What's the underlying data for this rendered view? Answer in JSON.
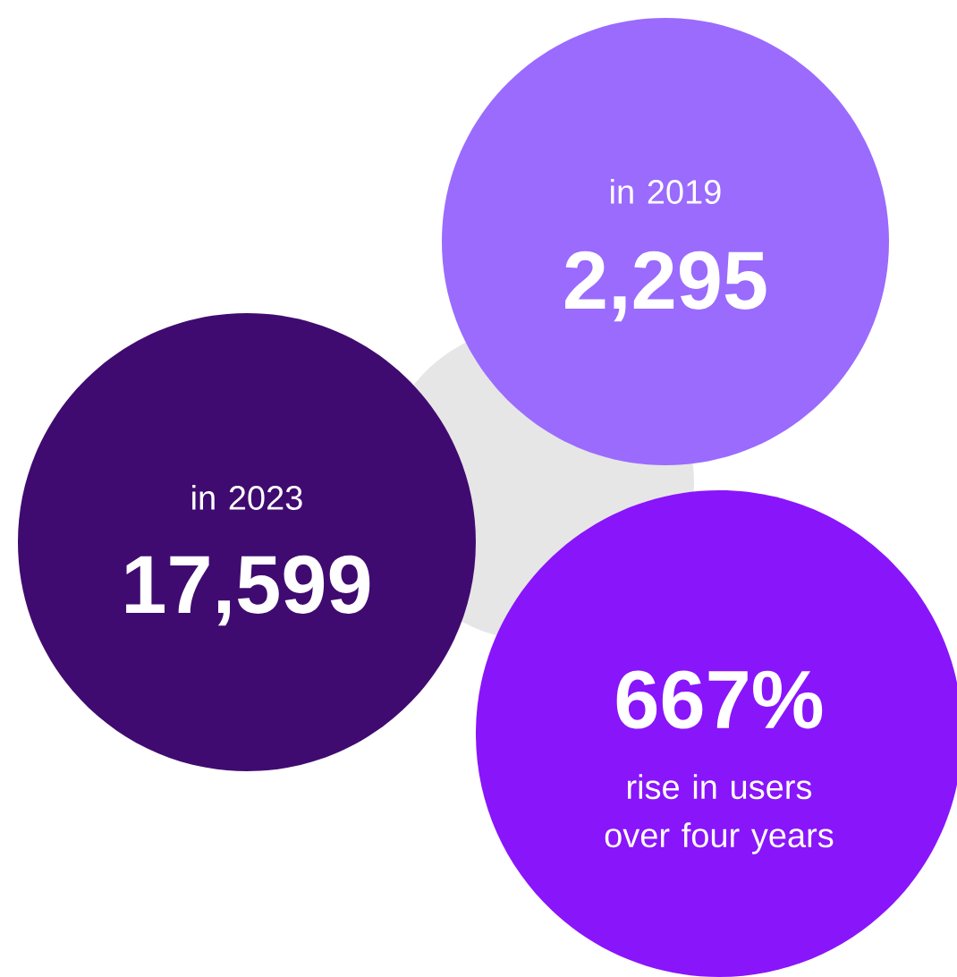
{
  "chart_data": {
    "type": "other",
    "categories": [
      "in 2019",
      "in 2023",
      "rise in users over four years"
    ],
    "values": [
      2295,
      17599,
      667
    ],
    "value_labels": [
      "2,295",
      "17,599",
      "667%"
    ],
    "colors": [
      "#9a6bfd",
      "#400b70",
      "#8915fa"
    ]
  }
}
